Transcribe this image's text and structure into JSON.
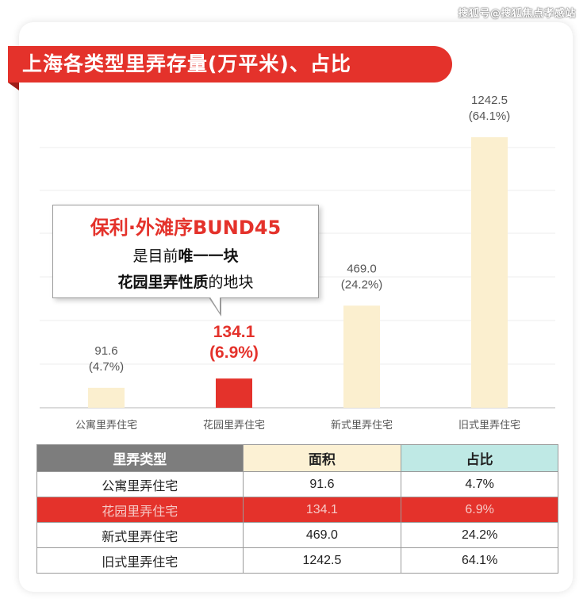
{
  "watermark": "搜狐号@搜狐焦点孝感站",
  "banner_title": "上海各类型里弄存量(万平米)、占比",
  "callout": {
    "title": "保利·外滩序BUND45",
    "line1_pre": "是目前",
    "line1_bold": "唯一一块",
    "line2_bold": "花园里弄性质",
    "line2_post": "的地块"
  },
  "chart_data": {
    "type": "bar",
    "title": "上海各类型里弄存量(万平米)、占比",
    "categories": [
      "公寓里弄住宅",
      "花园里弄住宅",
      "新式里弄住宅",
      "旧式里弄住宅"
    ],
    "values": [
      91.6,
      134.1,
      469.0,
      1242.5
    ],
    "shares": [
      "(4.7%)",
      "(6.9%)",
      "(24.2%)",
      "(64.1%)"
    ],
    "value_labels": [
      "91.6",
      "134.1",
      "469.0",
      "1242.5"
    ],
    "highlight_index": 1,
    "ylim": [
      0,
      1400
    ],
    "grid": true,
    "colors": {
      "bar": "#fbefcf",
      "highlight": "#e4322b"
    }
  },
  "table": {
    "headers": [
      "里弄类型",
      "面积",
      "占比"
    ],
    "rows": [
      [
        "公寓里弄住宅",
        "91.6",
        "4.7%"
      ],
      [
        "花园里弄住宅",
        "134.1",
        "6.9%"
      ],
      [
        "新式里弄住宅",
        "469.0",
        "24.2%"
      ],
      [
        "旧式里弄住宅",
        "1242.5",
        "64.1%"
      ]
    ],
    "highlight_row": 1
  }
}
